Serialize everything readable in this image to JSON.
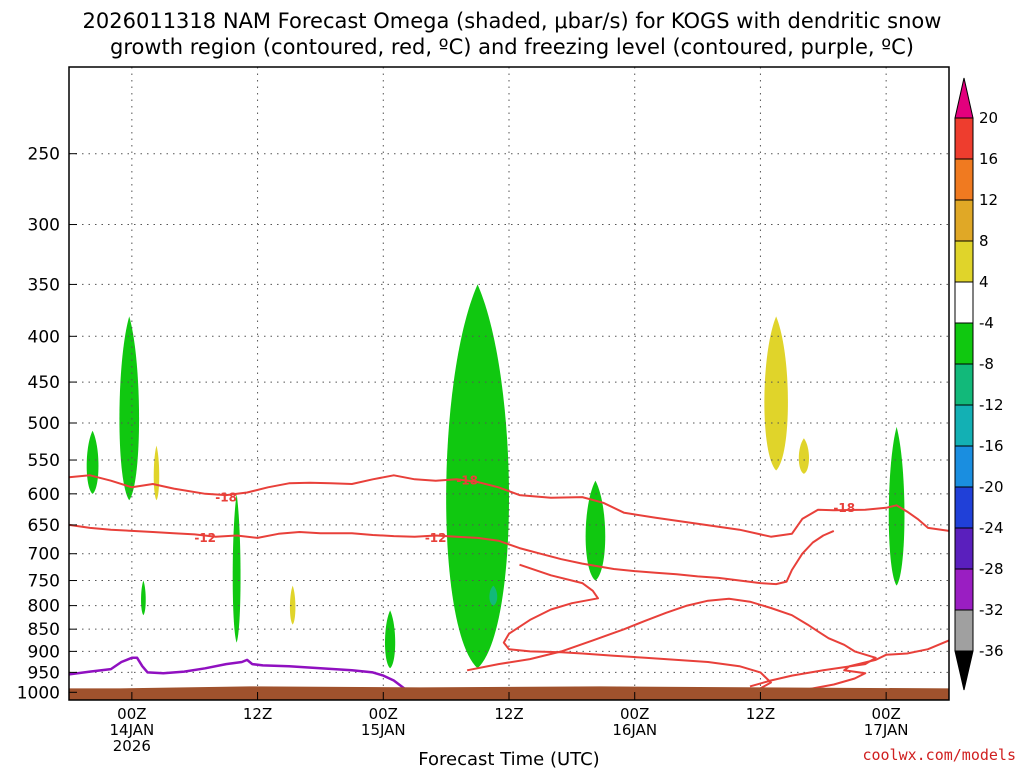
{
  "title_line1": "2026011318 NAM Forecast Omega (shaded, μbar/s) for KOGS with dendritic snow",
  "title_line2": "growth region (contoured, red, ºC) and freezing level (contoured, purple, ºC)",
  "credit": "coolwx.com/models",
  "chart_data": {
    "type": "time-height cross section",
    "xlabel": "Forecast Time (UTC)",
    "ylabel": "",
    "x_ticks": [
      {
        "hour": 6,
        "line1": "00Z",
        "line2": "14JAN",
        "line3": "2026"
      },
      {
        "hour": 18,
        "line1": "12Z",
        "line2": "",
        "line3": ""
      },
      {
        "hour": 30,
        "line1": "00Z",
        "line2": "15JAN",
        "line3": ""
      },
      {
        "hour": 42,
        "line1": "12Z",
        "line2": "",
        "line3": ""
      },
      {
        "hour": 54,
        "line1": "00Z",
        "line2": "16JAN",
        "line3": ""
      },
      {
        "hour": 66,
        "line1": "12Z",
        "line2": "",
        "line3": ""
      },
      {
        "hour": 78,
        "line1": "00Z",
        "line2": "17JAN",
        "line3": ""
      }
    ],
    "xlim_hours": [
      0,
      84
    ],
    "y_ticks": [
      250,
      300,
      350,
      400,
      450,
      500,
      550,
      600,
      650,
      700,
      750,
      800,
      850,
      900,
      950,
      1000
    ],
    "ylim_hPa": [
      200,
      1020
    ],
    "y_scale": "log-pressure (reversed)",
    "grid": "dotted",
    "colorbar": {
      "labels": [
        "20",
        "16",
        "12",
        "8",
        "4",
        "-4",
        "-8",
        "-12",
        "-16",
        "-20",
        "-24",
        "-28",
        "-32",
        "-36"
      ],
      "colors": [
        "#e3007d",
        "#ee3d2e",
        "#f07a20",
        "#e0a826",
        "#e0d42a",
        "#ffffff",
        "#10c810",
        "#12b97a",
        "#13b0b4",
        "#1a8ee0",
        "#2040d8",
        "#5a1fbd",
        "#9a1ec2",
        "#a0a0a0",
        "#000000"
      ]
    },
    "contours": [
      {
        "label": "-18",
        "color": "#e8403a",
        "kind": "dendritic"
      },
      {
        "label": "-12",
        "color": "#e8403a",
        "kind": "dendritic"
      },
      {
        "label": "0",
        "color": "#9010c0",
        "kind": "freezing level"
      }
    ],
    "omega_regions": [
      {
        "value": -6,
        "t_start": 1.5,
        "t_end": 3,
        "p_top": 510,
        "p_bot": 600
      },
      {
        "value": -6,
        "t_start": 4.5,
        "t_end": 7,
        "p_top": 380,
        "p_bot": 610
      },
      {
        "value": 6,
        "t_start": 8,
        "t_end": 8.7,
        "p_top": 530,
        "p_bot": 610
      },
      {
        "value": -6,
        "t_start": 6.8,
        "t_end": 7.4,
        "p_top": 750,
        "p_bot": 820
      },
      {
        "value": -6,
        "t_start": 15.5,
        "t_end": 16.5,
        "p_top": 600,
        "p_bot": 880
      },
      {
        "value": 6,
        "t_start": 21,
        "t_end": 21.7,
        "p_top": 760,
        "p_bot": 840
      },
      {
        "value": -6,
        "t_start": 30,
        "t_end": 31.3,
        "p_top": 810,
        "p_bot": 940
      },
      {
        "value": -6,
        "t_start": 35,
        "t_end": 43,
        "p_top": 350,
        "p_bot": 940
      },
      {
        "value": -10,
        "t_start": 40,
        "t_end": 41,
        "p_top": 760,
        "p_bot": 800
      },
      {
        "value": -6,
        "t_start": 49,
        "t_end": 51.5,
        "p_top": 580,
        "p_bot": 750
      },
      {
        "value": 6,
        "t_start": 66,
        "t_end": 69,
        "p_top": 380,
        "p_bot": 565
      },
      {
        "value": 6,
        "t_start": 69.5,
        "t_end": 70.8,
        "p_top": 520,
        "p_bot": 570
      },
      {
        "value": -6,
        "t_start": 78,
        "t_end": 80,
        "p_top": 505,
        "p_bot": 760
      }
    ]
  }
}
